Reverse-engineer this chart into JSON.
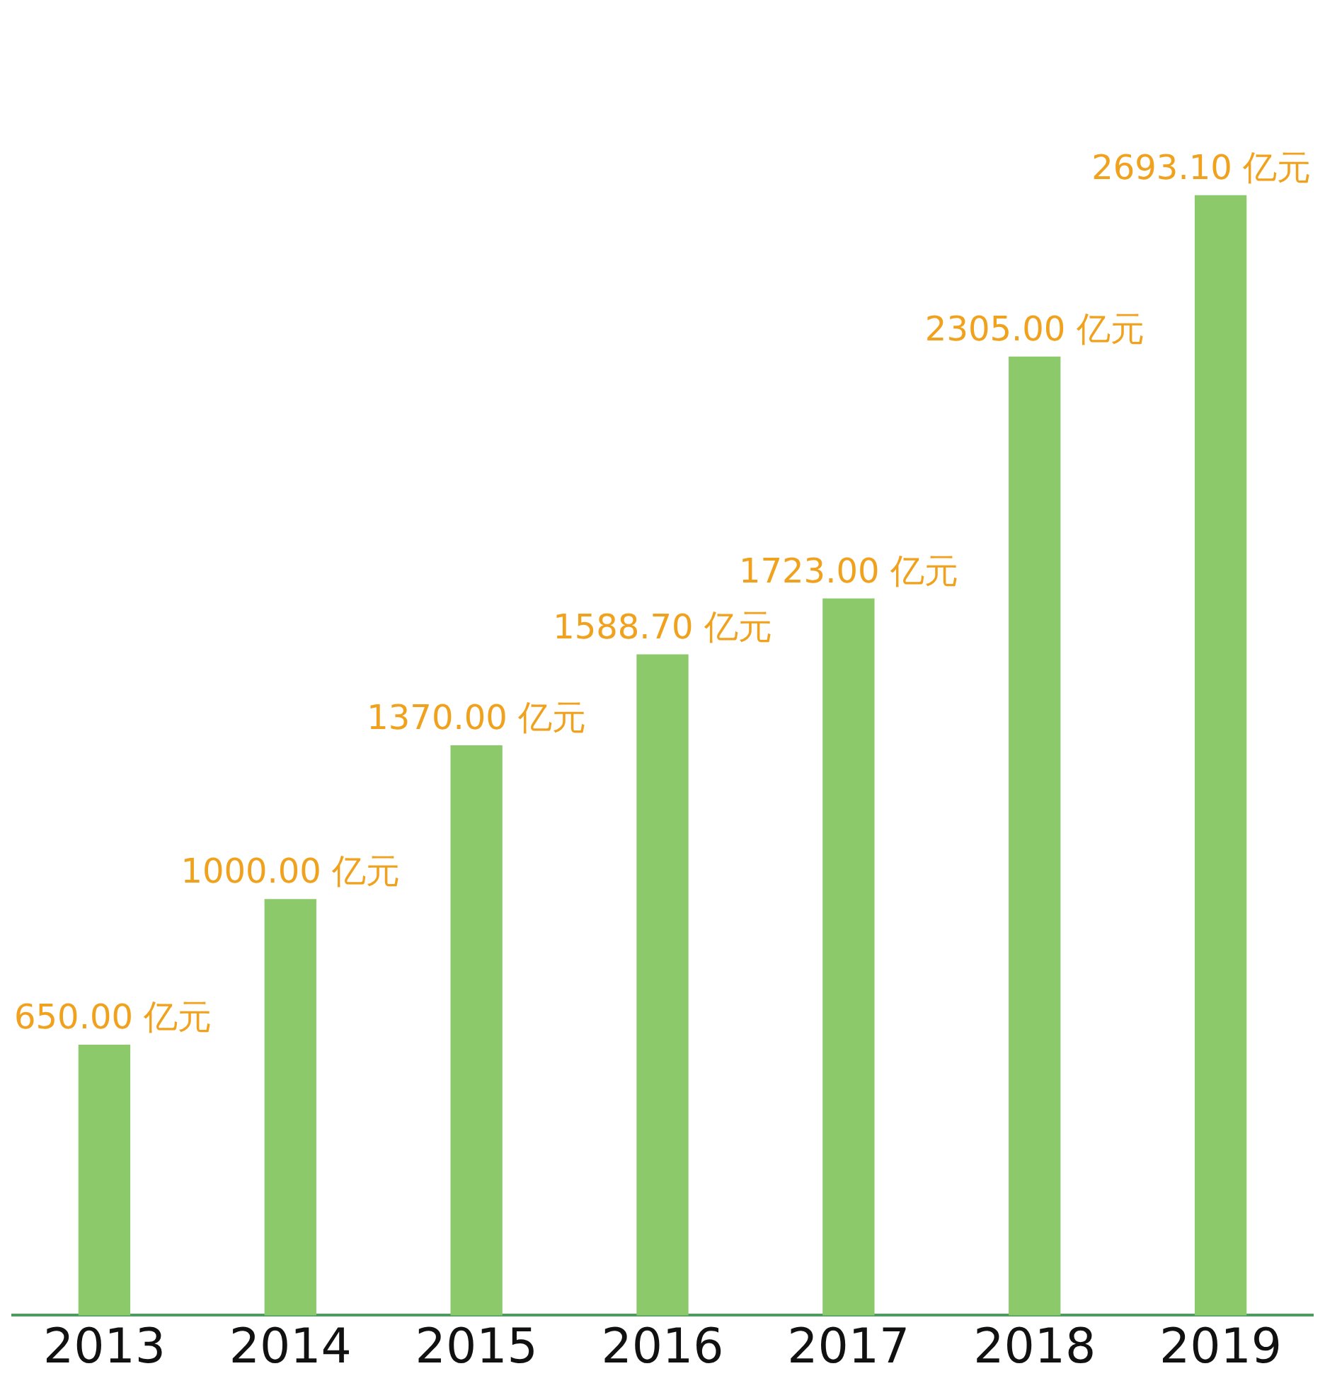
{
  "chart_data": {
    "type": "bar",
    "categories": [
      "2013",
      "2014",
      "2015",
      "2016",
      "2017",
      "2018",
      "2019"
    ],
    "values": [
      650,
      1000,
      1370,
      1588.7,
      1723,
      2305,
      2693.1
    ],
    "value_labels": [
      "650.00 亿元",
      "1000.00 亿元",
      "1370.00 亿元",
      "1588.70 亿元",
      "1723.00 亿元",
      "2305.00 亿元",
      "2693.10 亿元"
    ],
    "color": "#8cc96b"
  }
}
